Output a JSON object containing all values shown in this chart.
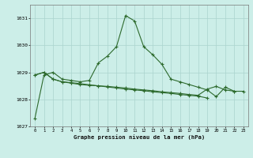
{
  "title": "Graphe pression niveau de la mer (hPa)",
  "background_color": "#cceee8",
  "grid_color": "#aad4ce",
  "line_color": "#2d6a2d",
  "marker_color": "#2d6a2d",
  "x": [
    0,
    1,
    2,
    3,
    4,
    5,
    6,
    7,
    8,
    9,
    10,
    11,
    12,
    13,
    14,
    15,
    16,
    17,
    18,
    19,
    20,
    21,
    22,
    23
  ],
  "series1": [
    1027.3,
    1028.9,
    1029.0,
    1028.75,
    1028.7,
    1028.65,
    1028.7,
    1029.35,
    1029.6,
    1029.95,
    1031.1,
    1030.9,
    1029.95,
    1029.65,
    1029.3,
    1028.75,
    1028.65,
    1028.55,
    1028.45,
    1028.35,
    1028.1,
    1028.45,
    1028.3,
    1028.3
  ],
  "series2": [
    1028.9,
    1029.0,
    1028.75,
    1028.65,
    1028.6,
    1028.55,
    1028.52,
    1028.5,
    1028.48,
    1028.45,
    1028.42,
    1028.38,
    1028.35,
    1028.32,
    1028.28,
    1028.25,
    1028.22,
    1028.18,
    1028.15,
    1028.38,
    1028.48,
    1028.35,
    1028.3,
    null
  ],
  "series3": [
    1028.9,
    1029.0,
    1028.75,
    1028.65,
    1028.62,
    1028.58,
    1028.54,
    1028.5,
    1028.46,
    1028.42,
    1028.38,
    1028.35,
    1028.32,
    1028.28,
    1028.25,
    1028.22,
    1028.18,
    1028.15,
    1028.12,
    1028.05,
    null,
    null,
    null,
    null
  ],
  "ylim": [
    1027.0,
    1031.5
  ],
  "yticks": [
    1027,
    1028,
    1029,
    1030,
    1031
  ],
  "xlim": [
    -0.5,
    23.5
  ],
  "xticks": [
    0,
    1,
    2,
    3,
    4,
    5,
    6,
    7,
    8,
    9,
    10,
    11,
    12,
    13,
    14,
    15,
    16,
    17,
    18,
    19,
    20,
    21,
    22,
    23
  ]
}
